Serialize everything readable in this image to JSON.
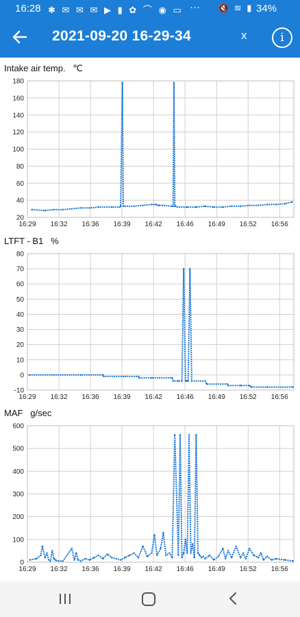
{
  "status_bar": {
    "time": "16:28",
    "icons_left": "✱ ✉ ✉ ✉ ▶ ▮ ✿ ⌒ ◉ ▭",
    "more": "···",
    "icons_right": "🔇 ≋ ▮",
    "battery": "34%"
  },
  "app_bar": {
    "title": "2021-09-20 16-29-34",
    "close_label": "x",
    "info_label": "i"
  },
  "charts": [
    {
      "label": "Intake air temp.   ℃"
    },
    {
      "label": "LTFT - B1   %"
    },
    {
      "label": "MAF   g/sec"
    }
  ],
  "chart_data": [
    {
      "type": "line",
      "title": "Intake air temp.   ℃",
      "xlabel": "",
      "ylabel": "",
      "x_ticks": [
        "16:29",
        "16:32",
        "16:36",
        "16:39",
        "16:42",
        "16:46",
        "16:49",
        "16:52",
        "16:56"
      ],
      "xlim": [
        0,
        30
      ],
      "y_ticks": [
        20,
        40,
        60,
        80,
        100,
        120,
        140,
        160,
        180
      ],
      "ylim": [
        20,
        180
      ],
      "grid": true,
      "color": "#1976d2",
      "series": [
        {
          "x": [
            0.5,
            2,
            3,
            4,
            5,
            6,
            7,
            8,
            9.5,
            10.4,
            10.5,
            10.7,
            10.8,
            11,
            12,
            13,
            14,
            14.4,
            14.5,
            14.7,
            14.8,
            15.2,
            16.3,
            16.4,
            16.5,
            16.6,
            16.7,
            16.9,
            18,
            19,
            20,
            21,
            22,
            23,
            24,
            25,
            26,
            27,
            28,
            29,
            29.8
          ],
          "y": [
            29,
            28,
            29,
            29,
            30,
            31,
            31,
            32,
            32,
            32,
            33,
            178,
            33,
            33,
            33,
            34,
            35,
            35,
            35,
            34,
            34,
            34,
            33,
            33,
            178,
            33,
            33,
            32,
            32,
            32,
            33,
            32,
            32,
            33,
            33,
            34,
            34,
            35,
            35,
            36,
            38
          ]
        }
      ]
    },
    {
      "type": "line",
      "title": "LTFT - B1   %",
      "xlabel": "",
      "ylabel": "",
      "x_ticks": [
        "16:29",
        "16:32",
        "16:36",
        "16:39",
        "16:42",
        "16:46",
        "16:49",
        "16:52",
        "16:56"
      ],
      "xlim": [
        0,
        30
      ],
      "y_ticks": [
        -10,
        0,
        10,
        20,
        30,
        40,
        50,
        60,
        70,
        80
      ],
      "ylim": [
        -10,
        80
      ],
      "grid": true,
      "color": "#1976d2",
      "series": [
        {
          "x": [
            0.2,
            3,
            6,
            8.5,
            8.6,
            11,
            12.5,
            12.6,
            14,
            16.3,
            16.4,
            17,
            17.4,
            17.6,
            17.8,
            18,
            18.1,
            18.3,
            18.5,
            20,
            20.2,
            22.5,
            22.6,
            24,
            25,
            25.2,
            27,
            29.9
          ],
          "y": [
            0,
            0,
            0,
            0,
            -1,
            -1,
            -1,
            -2,
            -2,
            -2,
            -4,
            -4,
            -4,
            70,
            -4,
            -4,
            -4,
            70,
            -4,
            -4,
            -6,
            -6,
            -7,
            -7,
            -7,
            -8,
            -8,
            -8
          ]
        }
      ]
    },
    {
      "type": "line",
      "title": "MAF   g/sec",
      "xlabel": "",
      "ylabel": "",
      "x_ticks": [
        "16:29",
        "16:32",
        "16:36",
        "16:39",
        "16:42",
        "16:46",
        "16:49",
        "16:52",
        "16:56"
      ],
      "xlim": [
        0,
        30
      ],
      "y_ticks": [
        0,
        100,
        200,
        300,
        400,
        500,
        600
      ],
      "ylim": [
        0,
        600
      ],
      "grid": true,
      "color": "#1976d2",
      "series": [
        {
          "x": [
            0.3,
            1,
            1.5,
            1.7,
            2,
            2.2,
            2.4,
            2.6,
            2.8,
            3,
            3.2,
            3.5,
            4,
            5,
            5.3,
            5.5,
            5.7,
            6,
            6.5,
            7,
            7.5,
            8,
            8.5,
            9,
            9.5,
            10,
            10.5,
            11,
            11.5,
            12,
            12.5,
            13,
            13.5,
            14,
            14.3,
            14.6,
            15,
            15.3,
            15.6,
            16,
            16.3,
            16.6,
            17,
            17.2,
            17.4,
            17.6,
            17.8,
            18,
            18.2,
            18.4,
            18.6,
            18.8,
            19,
            19.2,
            19.4,
            19.6,
            19.8,
            20,
            20.5,
            21,
            21.5,
            22,
            22.3,
            22.6,
            23,
            23.5,
            24,
            24.3,
            24.6,
            25,
            25.5,
            26,
            26.3,
            26.6,
            27,
            27.5,
            28,
            29,
            29.9
          ],
          "y": [
            10,
            15,
            30,
            70,
            20,
            40,
            10,
            5,
            50,
            15,
            8,
            5,
            5,
            60,
            10,
            40,
            10,
            5,
            15,
            10,
            20,
            30,
            15,
            35,
            20,
            15,
            10,
            20,
            30,
            40,
            20,
            70,
            25,
            40,
            120,
            30,
            60,
            130,
            30,
            40,
            20,
            560,
            30,
            560,
            20,
            40,
            100,
            40,
            560,
            40,
            80,
            20,
            560,
            40,
            30,
            20,
            25,
            15,
            30,
            10,
            25,
            60,
            15,
            50,
            20,
            70,
            20,
            40,
            15,
            60,
            30,
            20,
            40,
            10,
            25,
            10,
            15,
            10,
            5
          ]
        }
      ]
    }
  ]
}
